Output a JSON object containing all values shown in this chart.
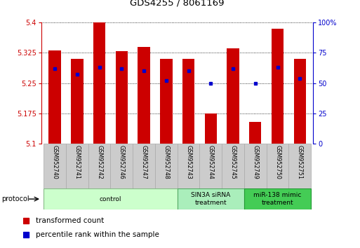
{
  "title": "GDS4255 / 8061169",
  "samples": [
    "GSM952740",
    "GSM952741",
    "GSM952742",
    "GSM952746",
    "GSM952747",
    "GSM952748",
    "GSM952743",
    "GSM952744",
    "GSM952745",
    "GSM952749",
    "GSM952750",
    "GSM952751"
  ],
  "red_values": [
    5.33,
    5.31,
    5.4,
    5.328,
    5.34,
    5.31,
    5.31,
    5.175,
    5.335,
    5.155,
    5.385,
    5.31
  ],
  "blue_percentile": [
    62,
    57,
    63,
    62,
    60,
    52,
    60,
    50,
    62,
    50,
    63,
    54
  ],
  "ylim": [
    5.1,
    5.4
  ],
  "yticks_left": [
    5.1,
    5.175,
    5.25,
    5.325,
    5.4
  ],
  "yticks_right": [
    0,
    25,
    50,
    75,
    100
  ],
  "bar_color": "#cc0000",
  "blue_color": "#0000cc",
  "left_axis_color": "#cc0000",
  "right_axis_color": "#0000cc",
  "bar_width": 0.55,
  "group_spans": [
    {
      "start": 0,
      "end": 5,
      "label": "control",
      "facecolor": "#ccffcc",
      "edgecolor": "#88bb88"
    },
    {
      "start": 6,
      "end": 8,
      "label": "SIN3A siRNA\ntreatment",
      "facecolor": "#aaeebb",
      "edgecolor": "#55aa66"
    },
    {
      "start": 9,
      "end": 11,
      "label": "miR-138 mimic\ntreatment",
      "facecolor": "#44cc55",
      "edgecolor": "#229933"
    }
  ],
  "label_bg": "#cccccc",
  "label_edge": "#aaaaaa"
}
